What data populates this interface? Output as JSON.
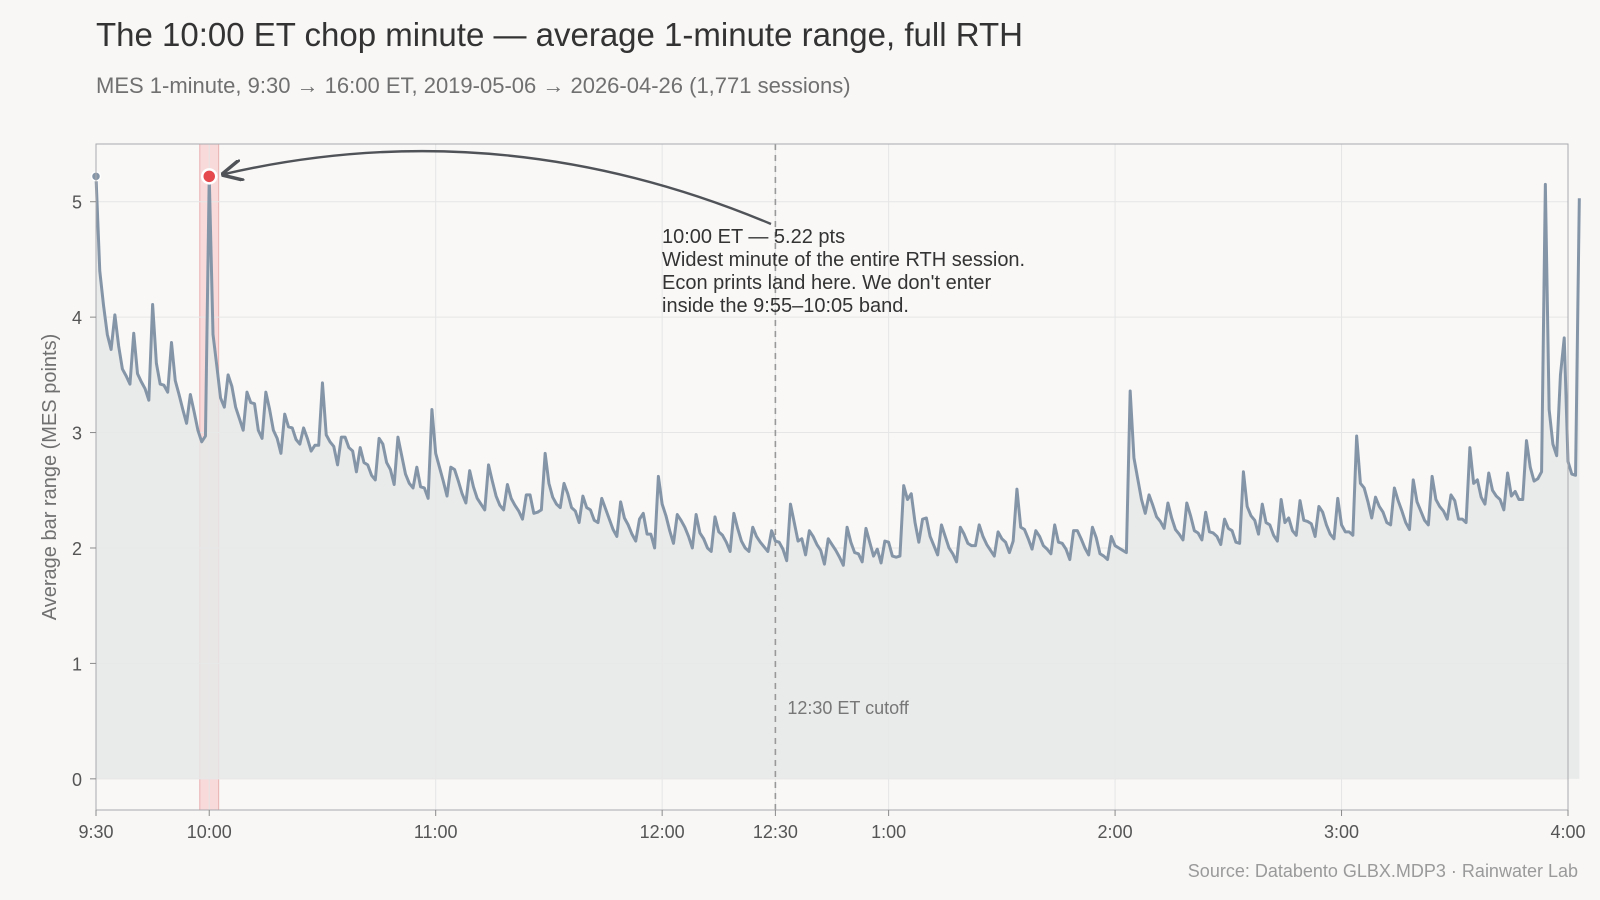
{
  "header": {
    "title": "The 10:00 ET chop minute — average 1-minute range, full RTH",
    "subtitle": "MES 1-minute, 9:30 → 16:00 ET, 2019-05-06 → 2026-04-26 (1,771 sessions)"
  },
  "footer": {
    "source": "Source: Databento GLBX.MDP3 · Rainwater Lab"
  },
  "colors": {
    "line": "#8595a8",
    "fill": "#e6e7e8",
    "highlight": "#e5484d",
    "band": "#f8d5d5",
    "cutoff": "#999999"
  },
  "chart_data": {
    "type": "line",
    "title": "The 10:00 ET chop minute — average 1-minute range, full RTH",
    "ylabel": "Average bar range (MES points)",
    "xlabel": "",
    "ylim": [
      -0.27,
      5.5
    ],
    "y_ticks": [
      0,
      1,
      2,
      3,
      4,
      5
    ],
    "xlim_minutes": [
      0,
      390
    ],
    "x_ticks": [
      {
        "minute": 0,
        "label": "9:30"
      },
      {
        "minute": 30,
        "label": "10:00"
      },
      {
        "minute": 90,
        "label": "11:00"
      },
      {
        "minute": 150,
        "label": "12:00"
      },
      {
        "minute": 180,
        "label": "12:30"
      },
      {
        "minute": 210,
        "label": "1:00"
      },
      {
        "minute": 270,
        "label": "2:00"
      },
      {
        "minute": 330,
        "label": "3:00"
      },
      {
        "minute": 390,
        "label": "4:00"
      }
    ],
    "grid": true,
    "series": [
      {
        "x_start_minute": 0,
        "step_minutes": 1,
        "values": [
          5.22,
          4.4,
          4.1,
          3.85,
          3.72,
          4.02,
          3.75,
          3.55,
          3.49,
          3.42,
          3.86,
          3.51,
          3.44,
          3.38,
          3.28,
          4.11,
          3.6,
          3.42,
          3.41,
          3.35,
          3.78,
          3.45,
          3.33,
          3.2,
          3.08,
          3.33,
          3.18,
          3.02,
          2.92,
          2.97,
          5.22,
          3.85,
          3.58,
          3.3,
          3.22,
          3.5,
          3.4,
          3.22,
          3.12,
          3.02,
          3.35,
          3.26,
          3.25,
          3.02,
          2.95,
          3.35,
          3.2,
          3.02,
          2.95,
          2.82,
          3.16,
          3.05,
          3.04,
          2.94,
          2.9,
          3.04,
          2.95,
          2.84,
          2.89,
          2.89,
          3.43,
          2.98,
          2.92,
          2.88,
          2.72,
          2.96,
          2.96,
          2.87,
          2.84,
          2.66,
          2.87,
          2.74,
          2.72,
          2.63,
          2.59,
          2.95,
          2.9,
          2.74,
          2.68,
          2.55,
          2.96,
          2.8,
          2.64,
          2.56,
          2.52,
          2.7,
          2.53,
          2.52,
          2.43,
          3.2,
          2.82,
          2.7,
          2.58,
          2.45,
          2.7,
          2.68,
          2.58,
          2.47,
          2.39,
          2.67,
          2.53,
          2.43,
          2.38,
          2.33,
          2.72,
          2.58,
          2.45,
          2.37,
          2.33,
          2.55,
          2.43,
          2.37,
          2.32,
          2.25,
          2.46,
          2.46,
          2.3,
          2.31,
          2.33,
          2.82,
          2.56,
          2.44,
          2.38,
          2.35,
          2.56,
          2.47,
          2.35,
          2.32,
          2.22,
          2.45,
          2.35,
          2.33,
          2.24,
          2.22,
          2.43,
          2.34,
          2.25,
          2.16,
          2.1,
          2.4,
          2.26,
          2.2,
          2.12,
          2.06,
          2.25,
          2.3,
          2.12,
          2.12,
          2.0,
          2.62,
          2.38,
          2.28,
          2.15,
          2.04,
          2.29,
          2.24,
          2.18,
          2.1,
          2.0,
          2.29,
          2.13,
          2.08,
          2.0,
          1.97,
          2.27,
          2.14,
          2.11,
          2.05,
          1.97,
          2.3,
          2.17,
          2.06,
          2.0,
          1.97,
          2.18,
          2.1,
          2.05,
          2.01,
          1.97,
          2.15,
          2.06,
          2.05,
          1.99,
          1.89,
          2.38,
          2.22,
          2.06,
          2.08,
          1.94,
          2.15,
          2.1,
          2.03,
          1.98,
          1.86,
          2.08,
          2.03,
          1.98,
          1.92,
          1.85,
          2.18,
          2.05,
          1.96,
          1.95,
          1.88,
          2.17,
          2.05,
          1.93,
          1.99,
          1.87,
          2.06,
          2.05,
          1.93,
          1.92,
          1.93,
          2.54,
          2.42,
          2.47,
          2.22,
          2.05,
          2.25,
          2.26,
          2.1,
          2.02,
          1.94,
          2.2,
          2.1,
          2.0,
          1.95,
          1.88,
          2.18,
          2.12,
          2.04,
          2.02,
          2.02,
          2.2,
          2.1,
          2.03,
          1.98,
          1.93,
          2.14,
          2.08,
          2.05,
          1.96,
          2.06,
          2.51,
          2.18,
          2.16,
          2.08,
          1.99,
          2.15,
          2.1,
          2.02,
          1.99,
          1.95,
          2.2,
          2.05,
          2.04,
          1.99,
          1.9,
          2.15,
          2.15,
          2.08,
          2.0,
          1.94,
          2.18,
          2.09,
          1.95,
          1.93,
          1.9,
          2.1,
          2.02,
          2.0,
          1.98,
          1.96,
          3.36,
          2.78,
          2.6,
          2.42,
          2.3,
          2.46,
          2.37,
          2.27,
          2.23,
          2.17,
          2.39,
          2.26,
          2.16,
          2.12,
          2.07,
          2.39,
          2.28,
          2.15,
          2.13,
          2.07,
          2.31,
          2.14,
          2.13,
          2.1,
          2.03,
          2.25,
          2.17,
          2.15,
          2.05,
          2.04,
          2.66,
          2.36,
          2.28,
          2.24,
          2.12,
          2.38,
          2.22,
          2.2,
          2.11,
          2.06,
          2.42,
          2.22,
          2.26,
          2.15,
          2.11,
          2.41,
          2.24,
          2.23,
          2.21,
          2.1,
          2.36,
          2.31,
          2.2,
          2.12,
          2.08,
          2.43,
          2.2,
          2.14,
          2.14,
          2.11,
          2.97,
          2.56,
          2.52,
          2.4,
          2.26,
          2.44,
          2.36,
          2.31,
          2.22,
          2.2,
          2.52,
          2.41,
          2.32,
          2.22,
          2.16,
          2.59,
          2.4,
          2.32,
          2.24,
          2.2,
          2.62,
          2.42,
          2.36,
          2.32,
          2.25,
          2.46,
          2.41,
          2.25,
          2.25,
          2.22,
          2.87,
          2.56,
          2.59,
          2.44,
          2.38,
          2.65,
          2.5,
          2.45,
          2.42,
          2.33,
          2.65,
          2.45,
          2.49,
          2.42,
          2.42,
          2.93,
          2.7,
          2.58,
          2.6,
          2.66,
          5.15,
          3.2,
          2.9,
          2.8,
          3.5,
          3.82,
          2.75,
          2.64,
          2.63,
          5.03
        ]
      }
    ],
    "highlight_point": {
      "minute": 30,
      "value": 5.22
    },
    "highlight_band": {
      "start_minute": 27.5,
      "end_minute": 32.5
    },
    "vline": {
      "minute": 180,
      "label": "12:30 ET cutoff"
    },
    "annotation": {
      "lines": [
        "10:00 ET — 5.22 pts",
        "Widest minute of the entire RTH session.",
        "Econ prints land here. We don't enter",
        "inside the 9:55–10:05 band."
      ]
    }
  }
}
